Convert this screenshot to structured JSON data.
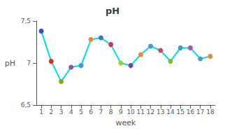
{
  "chart_data": {
    "type": "line",
    "title": "pH",
    "xlabel": "week",
    "ylabel": "pH",
    "x": [
      1,
      2,
      3,
      4,
      5,
      6,
      7,
      8,
      9,
      10,
      11,
      12,
      13,
      14,
      15,
      16,
      17,
      18
    ],
    "values": [
      7.38,
      7.02,
      6.78,
      6.95,
      6.97,
      7.28,
      7.3,
      7.22,
      7.0,
      6.97,
      7.1,
      7.2,
      7.15,
      7.02,
      7.18,
      7.18,
      7.05,
      7.08
    ],
    "color": "#00dddd",
    "colors": [
      "#3355bb",
      "#cc3322",
      "#88aa22",
      "#8855aa",
      "#4499cc",
      "#ee8833",
      "#3377cc",
      "#cc3355",
      "#aacc22",
      "#7744aa",
      "#ee8833",
      "#4499cc",
      "#cc4466",
      "#88bb22",
      "#4499cc",
      "#aa55bb",
      "#5599bb",
      "#ee8833"
    ],
    "marker": "circle",
    "xlim": [
      0.5,
      18.5
    ],
    "xticks": [
      1,
      2,
      3,
      4,
      5,
      6,
      7,
      8,
      9,
      10,
      11,
      12,
      13,
      14,
      15,
      16,
      17,
      18
    ],
    "ylim": [
      6.5,
      7.5
    ],
    "yticks": [
      {
        "value": 6.5,
        "label": "6,5"
      },
      7,
      {
        "value": 7.5,
        "label": "7,5"
      }
    ],
    "grid": false
  }
}
